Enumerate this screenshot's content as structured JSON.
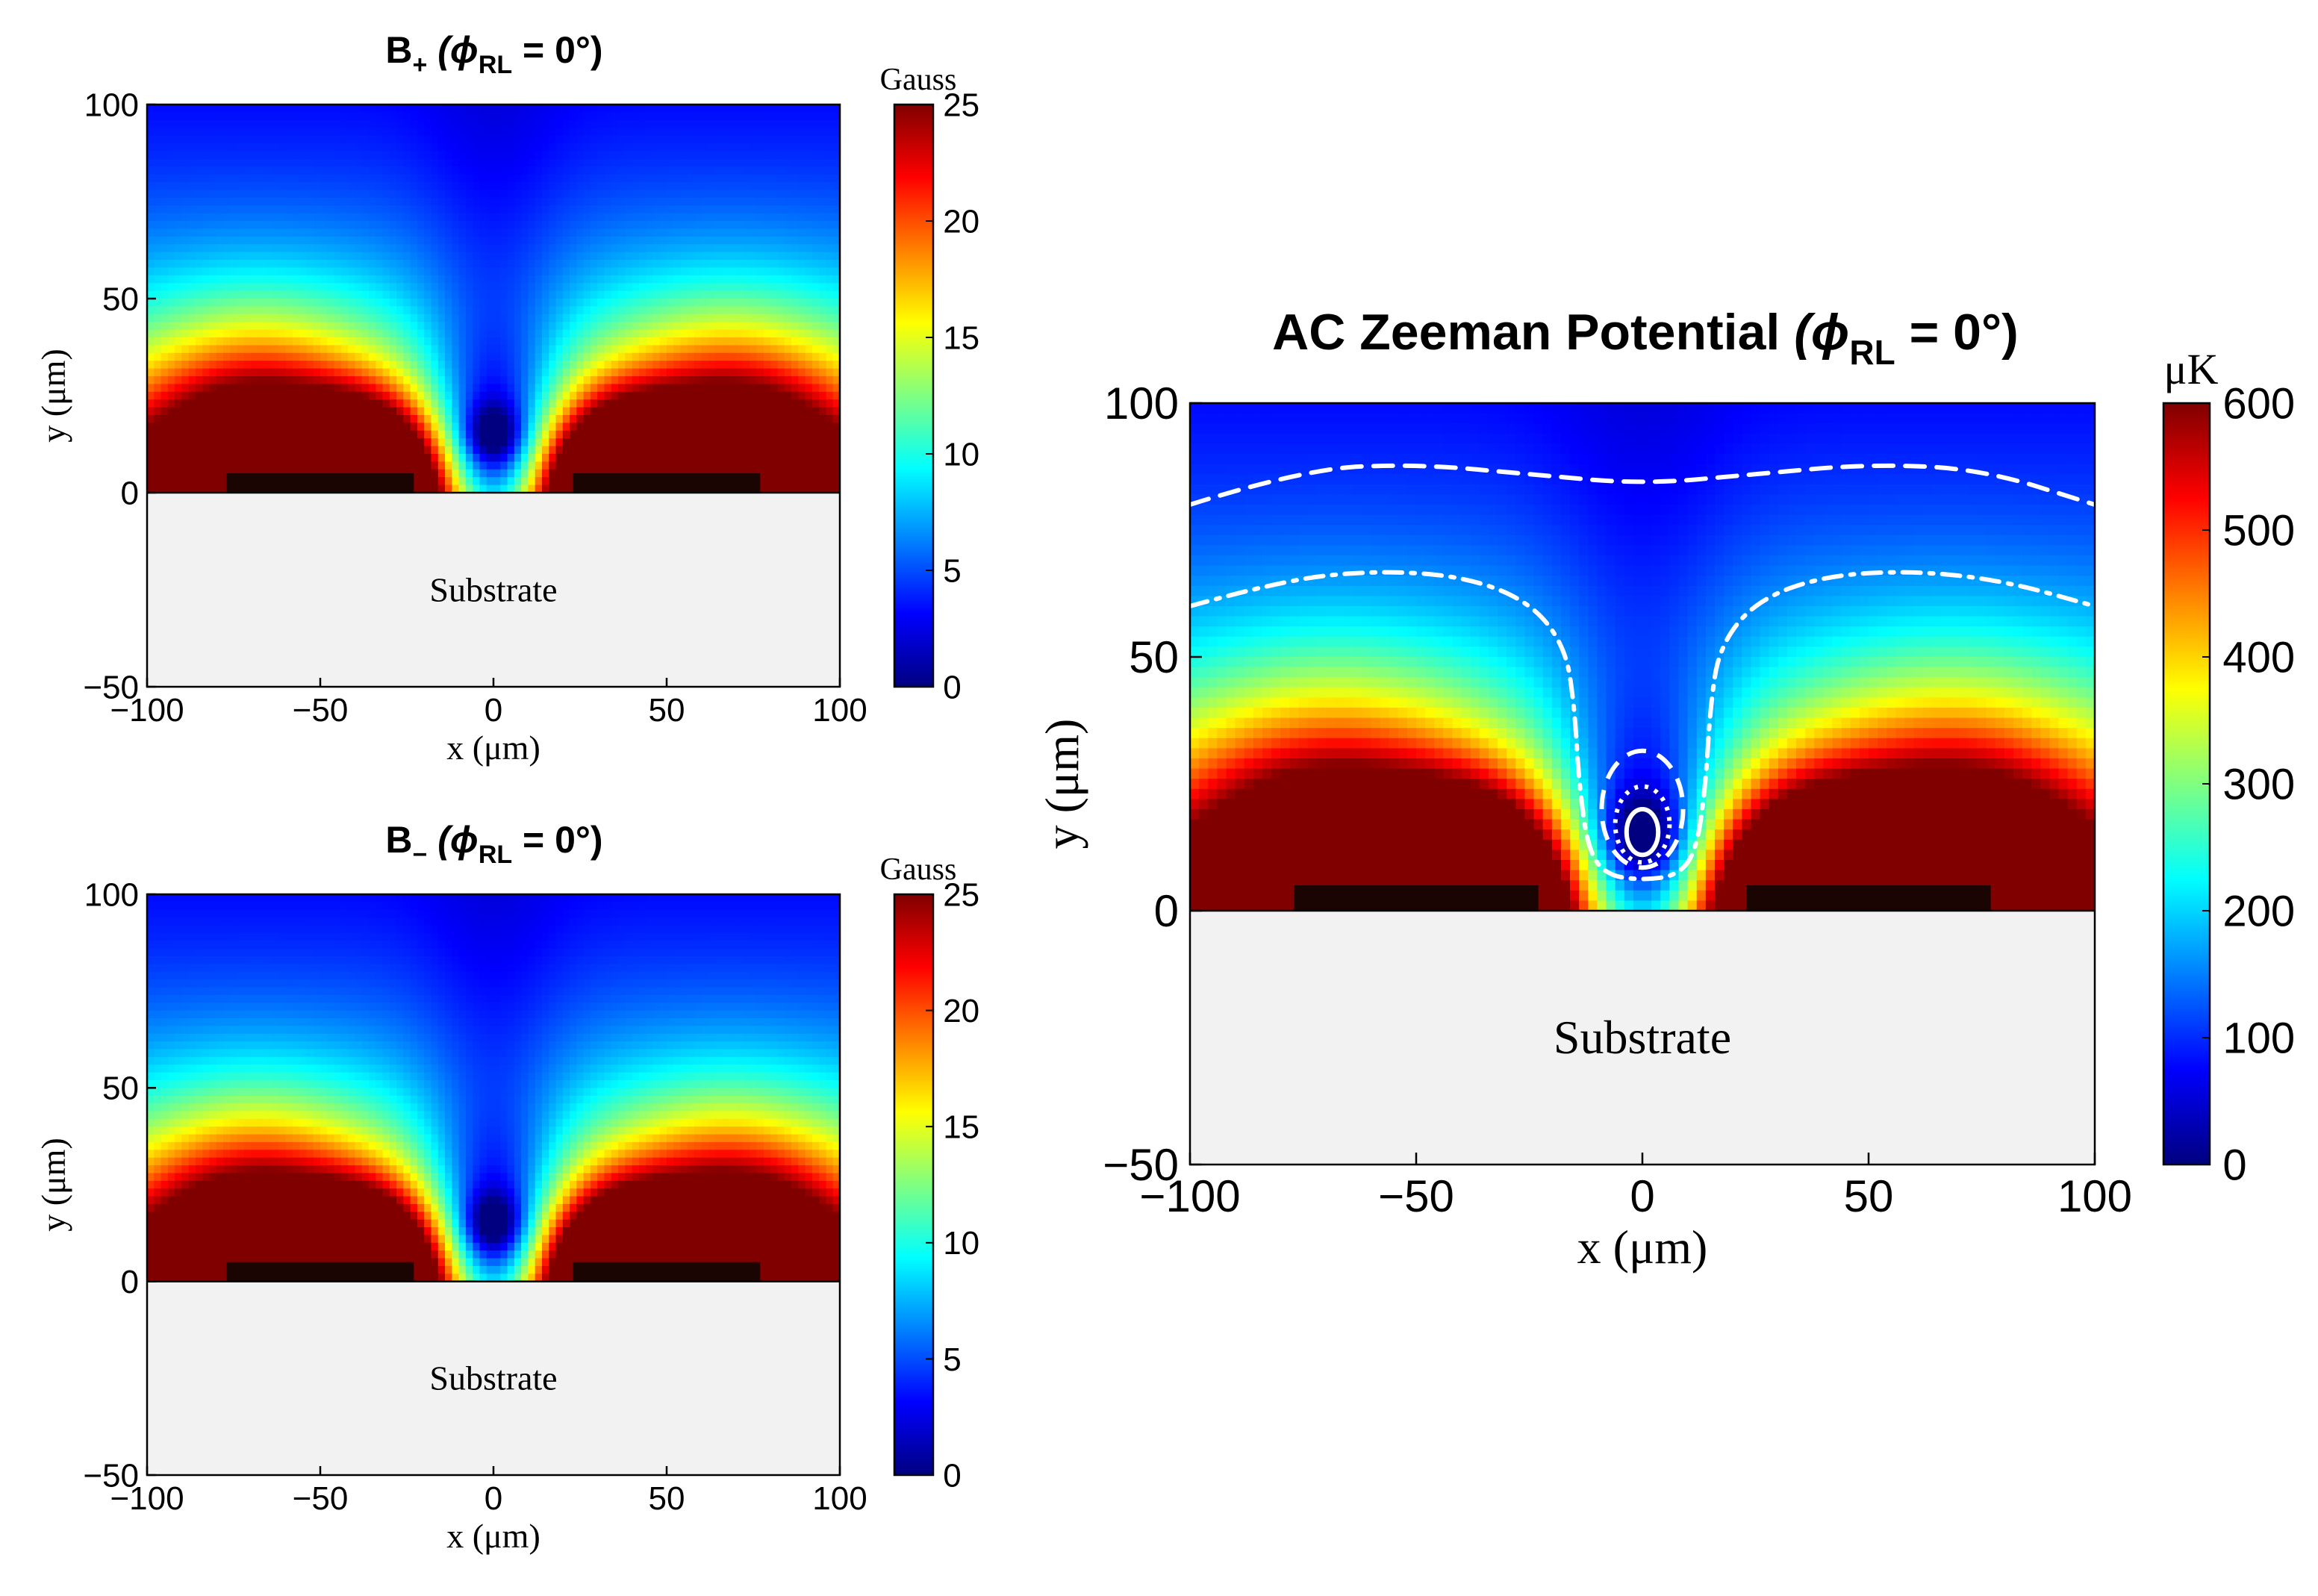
{
  "colors": {
    "jet": [
      "#000080",
      "#0000ff",
      "#0080ff",
      "#00ffff",
      "#80ff80",
      "#ffff00",
      "#ff8000",
      "#ff0000",
      "#800000"
    ],
    "substrate": "#f2f2f2",
    "electrode": "#1a0503",
    "contour": "#ffffff",
    "frame": "#000000"
  },
  "chart_data": [
    {
      "type": "heatmap",
      "id": "bplus",
      "title_main": "B",
      "title_sub": "+",
      "title_phi": "(ϕ",
      "title_phi_sub": "RL",
      "title_end": " = 0°)",
      "xlabel": "x (μm)",
      "ylabel": "y (μm)",
      "xlim": [
        -100,
        100
      ],
      "ylim": [
        -50,
        100
      ],
      "xticks": [
        -100,
        -50,
        0,
        50,
        100
      ],
      "yticks": [
        -50,
        0,
        50,
        100
      ],
      "colorbar": {
        "label": "Gauss",
        "range": [
          0,
          25
        ],
        "ticks": [
          0,
          5,
          10,
          15,
          20,
          25
        ]
      },
      "substrate_label": "Substrate",
      "electrodes": [
        {
          "x": [
            -77,
            -23
          ],
          "y": [
            0,
            5
          ]
        },
        {
          "x": [
            23,
            77
          ],
          "y": [
            0,
            5
          ]
        }
      ],
      "field_minimum": {
        "x": 0,
        "y": 15
      }
    },
    {
      "type": "heatmap",
      "id": "bminus",
      "title_main": "B",
      "title_sub": "−",
      "title_phi": "(ϕ",
      "title_phi_sub": "RL",
      "title_end": " = 0°)",
      "xlabel": "x (μm)",
      "ylabel": "y (μm)",
      "xlim": [
        -100,
        100
      ],
      "ylim": [
        -50,
        100
      ],
      "xticks": [
        -100,
        -50,
        0,
        50,
        100
      ],
      "yticks": [
        -50,
        0,
        50,
        100
      ],
      "colorbar": {
        "label": "Gauss",
        "range": [
          0,
          25
        ],
        "ticks": [
          0,
          5,
          10,
          15,
          20,
          25
        ]
      },
      "substrate_label": "Substrate",
      "electrodes": [
        {
          "x": [
            -77,
            -23
          ],
          "y": [
            0,
            5
          ]
        },
        {
          "x": [
            23,
            77
          ],
          "y": [
            0,
            5
          ]
        }
      ],
      "field_minimum": {
        "x": 0,
        "y": 15
      }
    },
    {
      "type": "heatmap",
      "id": "acz",
      "title_main": "AC Zeeman Potential",
      "title_sub": "",
      "title_phi": " (ϕ",
      "title_phi_sub": "RL",
      "title_end": " = 0°)",
      "xlabel": "x (μm)",
      "ylabel": "y (μm)",
      "xlim": [
        -100,
        100
      ],
      "ylim": [
        -50,
        100
      ],
      "xticks": [
        -100,
        -50,
        0,
        50,
        100
      ],
      "yticks": [
        -50,
        0,
        50,
        100
      ],
      "colorbar": {
        "label": "μK",
        "range": [
          0,
          600
        ],
        "ticks": [
          0,
          100,
          200,
          300,
          400,
          500,
          600
        ]
      },
      "substrate_label": "Substrate",
      "electrodes": [
        {
          "x": [
            -77,
            -23
          ],
          "y": [
            0,
            5
          ]
        },
        {
          "x": [
            23,
            77
          ],
          "y": [
            0,
            5
          ]
        }
      ],
      "trap_center": {
        "x": 0,
        "y": 15
      },
      "contours": [
        {
          "style": "dashed",
          "points": [
            [
              -100,
              80
            ],
            [
              -75,
              87
            ],
            [
              -50,
              88
            ],
            [
              -25,
              86
            ],
            [
              0,
              84
            ],
            [
              25,
              86
            ],
            [
              50,
              88
            ],
            [
              75,
              87
            ],
            [
              100,
              80
            ]
          ]
        },
        {
          "style": "dashdot",
          "points": [
            [
              -100,
              60
            ],
            [
              -80,
              65
            ],
            [
              -60,
              67
            ],
            [
              -40,
              66
            ],
            [
              -25,
              61
            ],
            [
              -17,
              52
            ],
            [
              -15,
              40
            ],
            [
              -14,
              25
            ],
            [
              -12,
              12
            ],
            [
              -8,
              7
            ],
            [
              0,
              6
            ],
            [
              8,
              7
            ],
            [
              12,
              12
            ],
            [
              14,
              25
            ],
            [
              15,
              40
            ],
            [
              17,
              52
            ],
            [
              25,
              61
            ],
            [
              40,
              66
            ],
            [
              60,
              67
            ],
            [
              80,
              65
            ],
            [
              100,
              60
            ]
          ]
        }
      ],
      "trap_contours": [
        {
          "style": "dashed",
          "cx": 0,
          "cy": 20,
          "rx": 9,
          "ry": 11.5
        },
        {
          "style": "dotted",
          "cx": 0,
          "cy": 17,
          "rx": 6,
          "ry": 7.5
        },
        {
          "style": "solid",
          "cx": 0,
          "cy": 15.5,
          "rx": 3.5,
          "ry": 4.5
        }
      ]
    }
  ]
}
